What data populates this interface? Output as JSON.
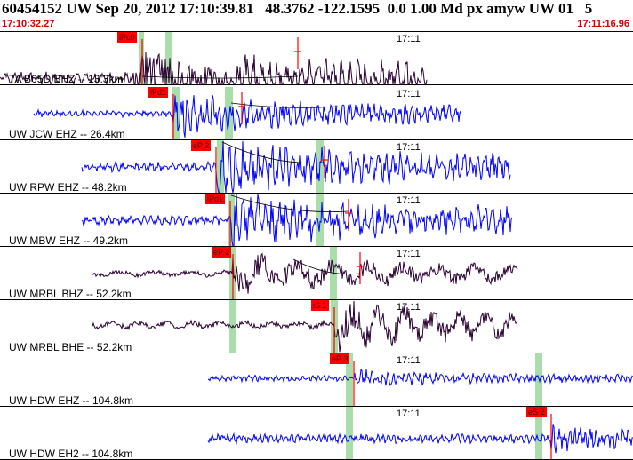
{
  "header": {
    "title": "60454152 UW Sep 20, 2012 17:10:39.81   48.3762 -122.1595  0.0 1.00 Md px amyw UW 01   5",
    "start_time": "17:10:32.27",
    "end_time": "17:11:16.96"
  },
  "time_tick_label": "17:11",
  "colors": {
    "trace_primary": "#0000ff",
    "trace_dark": "#2a0033",
    "pick_box": "#ff0000",
    "pick_line": "#ff0000",
    "window_band": "#9ad79a",
    "time_labels": "#d40000"
  },
  "channels": [
    {
      "label": "TA B05D BHZ -- 13.3km",
      "pick": "iPc0",
      "color_key": "trace_dark"
    },
    {
      "label": "UW JCW EHZ -- 26.4km",
      "pick": "iPd1",
      "color_key": "trace_primary"
    },
    {
      "label": "UW RPW EHZ -- 48.2km",
      "pick": "eP 2",
      "color_key": "trace_primary"
    },
    {
      "label": "UW MBW EHZ -- 49.2km",
      "pick": "iPd1",
      "color_key": "trace_primary"
    },
    {
      "label": "UW MRBL BHZ -- 52.2km",
      "pick": "eP 2",
      "color_key": "trace_dark"
    },
    {
      "label": "UW MRBL BHE -- 52.2km",
      "pick": "iS 1",
      "color_key": "trace_dark"
    },
    {
      "label": "UW HDW EHZ -- 104.8km",
      "pick": "eP 3",
      "color_key": "trace_primary"
    },
    {
      "label": "UW HDW EH2 -- 104.8km",
      "pick": "eS 2",
      "color_key": "trace_primary"
    }
  ]
}
